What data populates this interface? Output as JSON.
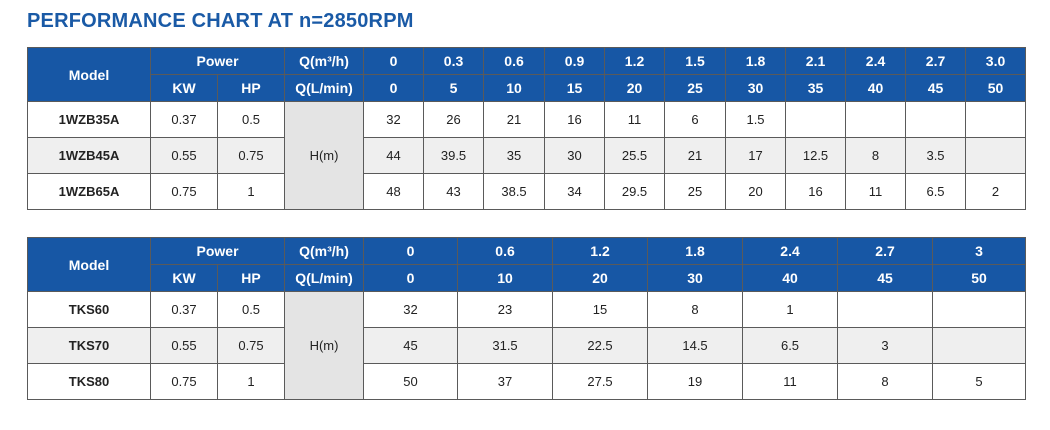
{
  "title": "PERFORMANCE CHART AT n=2850RPM",
  "table1": {
    "model_header": "Model",
    "power_header": "Power",
    "kw_header": "KW",
    "hp_header": "HP",
    "q_m3h_header": "Q(m³/h)",
    "q_lmin_header": "Q(L/min)",
    "head_label": "H(m)",
    "q_m3h": [
      "0",
      "0.3",
      "0.6",
      "0.9",
      "1.2",
      "1.5",
      "1.8",
      "2.1",
      "2.4",
      "2.7",
      "3.0"
    ],
    "q_lmin": [
      "0",
      "5",
      "10",
      "15",
      "20",
      "25",
      "30",
      "35",
      "40",
      "45",
      "50"
    ],
    "rows": [
      {
        "model": "1WZB35A",
        "kw": "0.37",
        "hp": "0.5",
        "h": [
          "32",
          "26",
          "21",
          "16",
          "11",
          "6",
          "1.5",
          "",
          "",
          "",
          ""
        ]
      },
      {
        "model": "1WZB45A",
        "kw": "0.55",
        "hp": "0.75",
        "h": [
          "44",
          "39.5",
          "35",
          "30",
          "25.5",
          "21",
          "17",
          "12.5",
          "8",
          "3.5",
          ""
        ]
      },
      {
        "model": "1WZB65A",
        "kw": "0.75",
        "hp": "1",
        "h": [
          "48",
          "43",
          "38.5",
          "34",
          "29.5",
          "25",
          "20",
          "16",
          "11",
          "6.5",
          "2"
        ]
      }
    ]
  },
  "table2": {
    "model_header": "Model",
    "power_header": "Power",
    "kw_header": "KW",
    "hp_header": "HP",
    "q_m3h_header": "Q(m³/h)",
    "q_lmin_header": "Q(L/min)",
    "head_label": "H(m)",
    "q_m3h": [
      "0",
      "0.6",
      "1.2",
      "1.8",
      "2.4",
      "2.7",
      "3"
    ],
    "q_lmin": [
      "0",
      "10",
      "20",
      "30",
      "40",
      "45",
      "50"
    ],
    "rows": [
      {
        "model": "TKS60",
        "kw": "0.37",
        "hp": "0.5",
        "h": [
          "32",
          "23",
          "15",
          "8",
          "1",
          "",
          ""
        ]
      },
      {
        "model": "TKS70",
        "kw": "0.55",
        "hp": "0.75",
        "h": [
          "45",
          "31.5",
          "22.5",
          "14.5",
          "6.5",
          "3",
          ""
        ]
      },
      {
        "model": "TKS80",
        "kw": "0.75",
        "hp": "1",
        "h": [
          "50",
          "37",
          "27.5",
          "19",
          "11",
          "8",
          "5"
        ]
      }
    ]
  }
}
